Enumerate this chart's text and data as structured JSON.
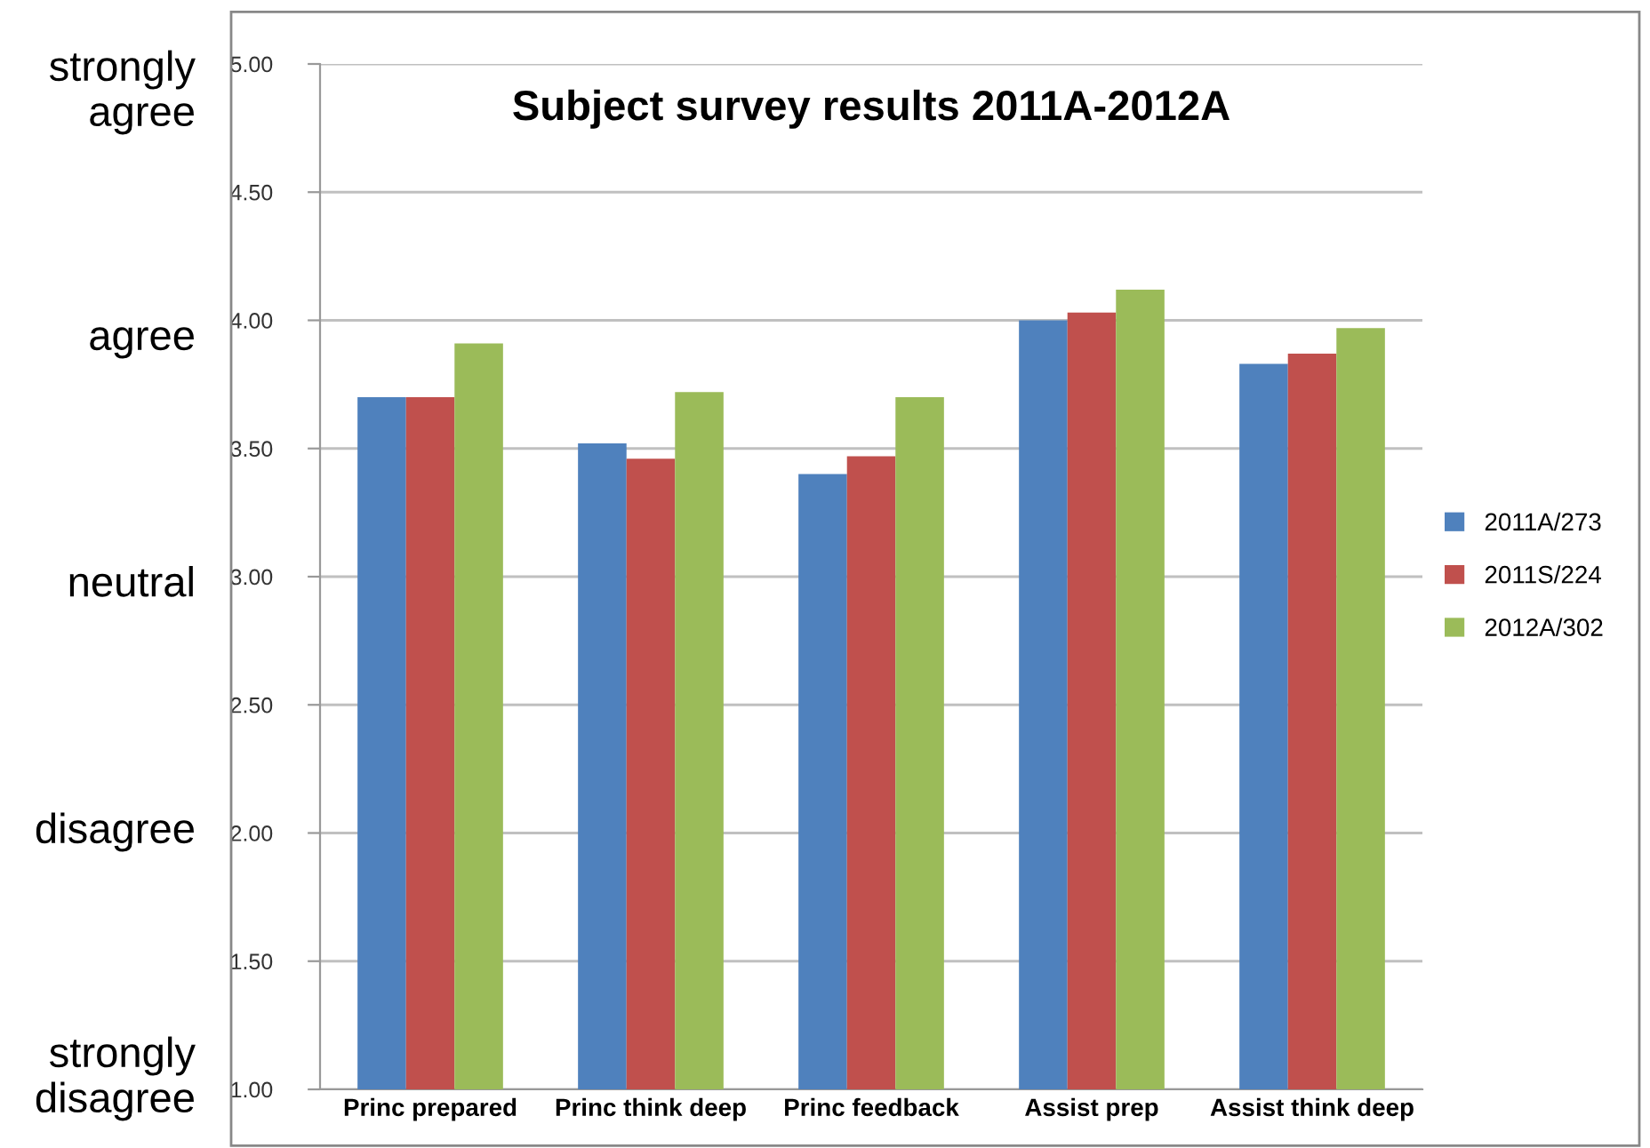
{
  "chart_data": {
    "type": "bar",
    "title": "Subject survey results 2011A-2012A",
    "categories": [
      "Princ prepared",
      "Princ think deep",
      "Princ feedback",
      "Assist prep",
      "Assist think deep"
    ],
    "series": [
      {
        "name": "2011A/273",
        "color": "#4f81bd",
        "values": [
          3.7,
          3.52,
          3.4,
          4.0,
          3.83
        ]
      },
      {
        "name": "2011S/224",
        "color": "#c0504d",
        "values": [
          3.7,
          3.46,
          3.47,
          4.03,
          3.87
        ]
      },
      {
        "name": "2012A/302",
        "color": "#9bbb59",
        "values": [
          3.91,
          3.72,
          3.7,
          4.12,
          3.97
        ]
      }
    ],
    "ylim": [
      1.0,
      5.0
    ],
    "yticks": [
      {
        "value": 1.0,
        "label": "1.00"
      },
      {
        "value": 1.5,
        "label": "1.50"
      },
      {
        "value": 2.0,
        "label": "2.00"
      },
      {
        "value": 2.5,
        "label": "2.50"
      },
      {
        "value": 3.0,
        "label": "3.00"
      },
      {
        "value": 3.5,
        "label": "3.50"
      },
      {
        "value": 4.0,
        "label": "4.00"
      },
      {
        "value": 4.5,
        "label": "4.50"
      },
      {
        "value": 5.0,
        "label": "5.00"
      }
    ],
    "grid": "y",
    "legend": "right",
    "annotations": [
      "strongly\nagree",
      "agree",
      "neutral",
      "disagree",
      "strongly\ndisagree"
    ]
  }
}
